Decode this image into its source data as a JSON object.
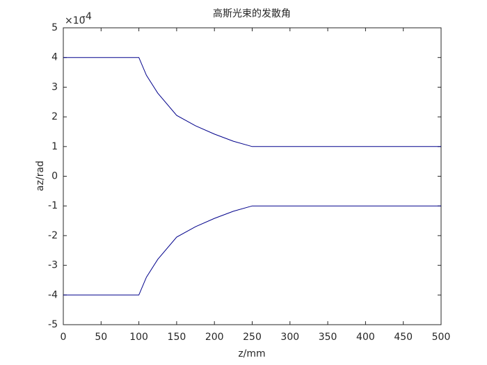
{
  "chart_data": {
    "type": "line",
    "title": "高斯光束的发散角",
    "x_label": "z/mm",
    "y_label": "az/rad",
    "y_multiplier": {
      "base": "×10",
      "exponent": "-4"
    },
    "x": [
      0,
      100,
      110,
      125,
      150,
      175,
      200,
      225,
      250,
      500
    ],
    "series": [
      {
        "color": "#00008b",
        "values": [
          4,
          4,
          3.4,
          2.8,
          2.05,
          1.7,
          1.42,
          1.18,
          1,
          1
        ]
      },
      {
        "color": "#00008b",
        "values": [
          -4,
          -4,
          -3.4,
          -2.8,
          -2.05,
          -1.7,
          -1.42,
          -1.18,
          -1,
          -1
        ]
      }
    ],
    "xlim": [
      0,
      500
    ],
    "xticks": [
      0,
      50,
      100,
      150,
      200,
      250,
      300,
      350,
      400,
      450,
      500
    ],
    "ylim": [
      -5,
      5
    ],
    "yticks": [
      -5,
      -4,
      -3,
      -2,
      -1,
      0,
      1,
      2,
      3,
      4,
      5
    ],
    "grid": false
  }
}
